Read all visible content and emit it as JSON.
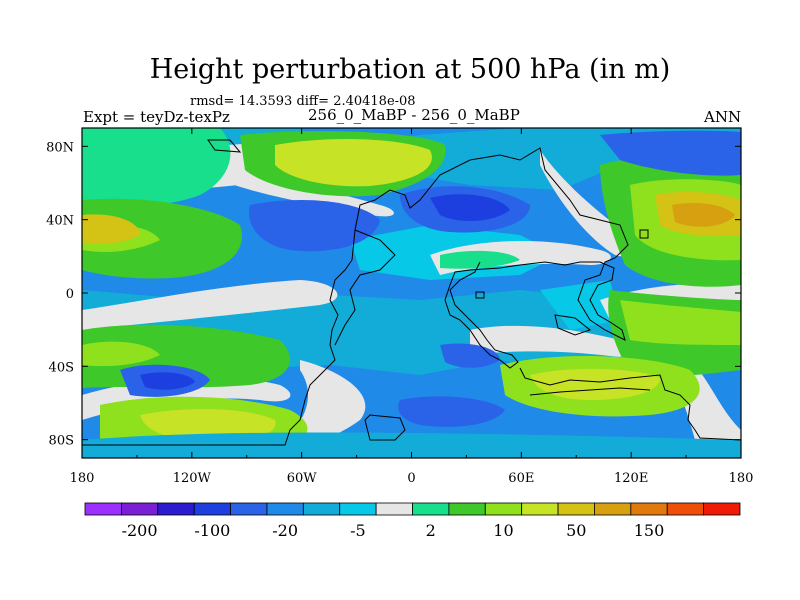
{
  "header": {
    "title": "Height perturbation at 500 hPa (in m)",
    "rmsd_line": "rmsd= 14.3593 diff= 2.40418e-08",
    "expt_label": "Expt = teyDz-texPz",
    "center_label": "256_0_MaBP - 256_0_MaBP",
    "season": "ANN"
  },
  "chart_data": {
    "type": "heatmap",
    "title": "Height perturbation at 500 hPa (in m)",
    "subtitle": "256_0_MaBP - 256_0_MaBP",
    "xlabel": "",
    "ylabel": "",
    "xlim": [
      -180,
      180
    ],
    "ylim": [
      -90,
      90
    ],
    "x_ticks": [
      {
        "value": -180,
        "label": "180"
      },
      {
        "value": -120,
        "label": "120W"
      },
      {
        "value": -60,
        "label": "60W"
      },
      {
        "value": 0,
        "label": "0"
      },
      {
        "value": 60,
        "label": "60E"
      },
      {
        "value": 120,
        "label": "120E"
      },
      {
        "value": 180,
        "label": "180"
      }
    ],
    "y_ticks": [
      {
        "value": 80,
        "label": "80N"
      },
      {
        "value": 40,
        "label": "40N"
      },
      {
        "value": 0,
        "label": "0"
      },
      {
        "value": -40,
        "label": "40S"
      },
      {
        "value": -80,
        "label": "80S"
      }
    ],
    "colorbar": {
      "labels": [
        "-200",
        "-100",
        "-20",
        "-5",
        "2",
        "10",
        "50",
        "150"
      ],
      "colors": [
        "#9b30ff",
        "#7b1fd6",
        "#2b1ccf",
        "#1d3fe0",
        "#2a62e8",
        "#1f8ae8",
        "#13acd8",
        "#07c8e6",
        "#e6e6e6",
        "#18df8c",
        "#3ec82a",
        "#8ee11c",
        "#c6e325",
        "#d4c214",
        "#d6a010",
        "#e07a0c",
        "#ef4e0a",
        "#f01a06"
      ]
    },
    "regions": [
      {
        "lon": -150,
        "lat": 68,
        "value": 10
      },
      {
        "lon": -60,
        "lat": 72,
        "value": 50
      },
      {
        "lon": -160,
        "lat": 35,
        "value": 50
      },
      {
        "lon": -80,
        "lat": 38,
        "value": -20
      },
      {
        "lon": 30,
        "lat": 42,
        "value": -100
      },
      {
        "lon": 80,
        "lat": 72,
        "value": -20
      },
      {
        "lon": 160,
        "lat": 42,
        "value": 100
      },
      {
        "lon": 150,
        "lat": 75,
        "value": -20
      },
      {
        "lon": 150,
        "lat": 0,
        "value": 10
      },
      {
        "lon": -150,
        "lat": -20,
        "value": 10
      },
      {
        "lon": -150,
        "lat": -52,
        "value": -100
      },
      {
        "lon": -100,
        "lat": -75,
        "value": 50
      },
      {
        "lon": 10,
        "lat": -68,
        "value": -50
      },
      {
        "lon": 80,
        "lat": -50,
        "value": 50
      },
      {
        "lon": -30,
        "lat": -35,
        "value": -20
      }
    ]
  }
}
